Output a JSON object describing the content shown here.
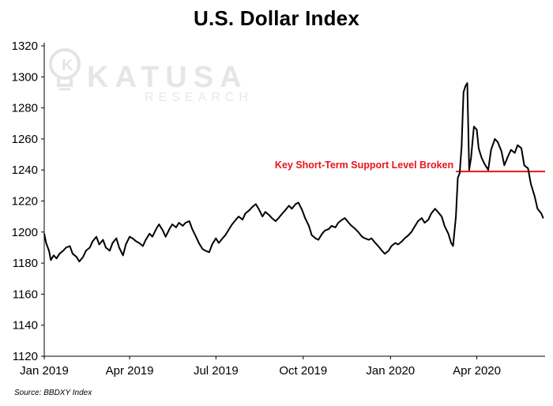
{
  "chart_data": {
    "type": "line",
    "title": "U.S. Dollar Index",
    "xlabel": "",
    "ylabel": "",
    "ylim": [
      1120,
      1320
    ],
    "yticks": [
      1120,
      1140,
      1160,
      1180,
      1200,
      1220,
      1240,
      1260,
      1280,
      1300,
      1320
    ],
    "xlim": [
      "2019-01-01",
      "2020-06-12"
    ],
    "xticks": [
      {
        "date": "2019-01-01",
        "label": "Jan 2019"
      },
      {
        "date": "2019-04-01",
        "label": "Apr 2019"
      },
      {
        "date": "2019-07-01",
        "label": "Jul 2019"
      },
      {
        "date": "2019-10-01",
        "label": "Oct 2019"
      },
      {
        "date": "2020-01-01",
        "label": "Jan 2020"
      },
      {
        "date": "2020-04-01",
        "label": "Apr 2020"
      }
    ],
    "grid": false,
    "line_color": "#000000",
    "series": [
      {
        "points": [
          [
            "2019-01-01",
            1199
          ],
          [
            "2019-01-03",
            1193
          ],
          [
            "2019-01-06",
            1188
          ],
          [
            "2019-01-08",
            1182
          ],
          [
            "2019-01-11",
            1185
          ],
          [
            "2019-01-14",
            1183
          ],
          [
            "2019-01-17",
            1186
          ],
          [
            "2019-01-21",
            1188
          ],
          [
            "2019-01-24",
            1190
          ],
          [
            "2019-01-28",
            1191
          ],
          [
            "2019-01-31",
            1186
          ],
          [
            "2019-02-04",
            1184
          ],
          [
            "2019-02-07",
            1181
          ],
          [
            "2019-02-11",
            1184
          ],
          [
            "2019-02-14",
            1188
          ],
          [
            "2019-02-18",
            1190
          ],
          [
            "2019-02-21",
            1194
          ],
          [
            "2019-02-25",
            1197
          ],
          [
            "2019-02-28",
            1192
          ],
          [
            "2019-03-04",
            1195
          ],
          [
            "2019-03-07",
            1190
          ],
          [
            "2019-03-11",
            1188
          ],
          [
            "2019-03-14",
            1193
          ],
          [
            "2019-03-18",
            1196
          ],
          [
            "2019-03-21",
            1190
          ],
          [
            "2019-03-25",
            1185
          ],
          [
            "2019-03-28",
            1192
          ],
          [
            "2019-04-01",
            1197
          ],
          [
            "2019-04-04",
            1196
          ],
          [
            "2019-04-08",
            1194
          ],
          [
            "2019-04-11",
            1193
          ],
          [
            "2019-04-15",
            1191
          ],
          [
            "2019-04-18",
            1195
          ],
          [
            "2019-04-22",
            1199
          ],
          [
            "2019-04-25",
            1197
          ],
          [
            "2019-04-29",
            1202
          ],
          [
            "2019-05-02",
            1205
          ],
          [
            "2019-05-06",
            1201
          ],
          [
            "2019-05-09",
            1197
          ],
          [
            "2019-05-13",
            1202
          ],
          [
            "2019-05-16",
            1205
          ],
          [
            "2019-05-20",
            1203
          ],
          [
            "2019-05-23",
            1206
          ],
          [
            "2019-05-27",
            1204
          ],
          [
            "2019-05-30",
            1206
          ],
          [
            "2019-06-03",
            1207
          ],
          [
            "2019-06-06",
            1202
          ],
          [
            "2019-06-10",
            1197
          ],
          [
            "2019-06-13",
            1193
          ],
          [
            "2019-06-17",
            1189
          ],
          [
            "2019-06-20",
            1188
          ],
          [
            "2019-06-24",
            1187
          ],
          [
            "2019-06-27",
            1192
          ],
          [
            "2019-07-01",
            1196
          ],
          [
            "2019-07-04",
            1193
          ],
          [
            "2019-07-08",
            1196
          ],
          [
            "2019-07-11",
            1198
          ],
          [
            "2019-07-15",
            1202
          ],
          [
            "2019-07-18",
            1205
          ],
          [
            "2019-07-22",
            1208
          ],
          [
            "2019-07-25",
            1210
          ],
          [
            "2019-07-29",
            1208
          ],
          [
            "2019-08-01",
            1212
          ],
          [
            "2019-08-05",
            1214
          ],
          [
            "2019-08-08",
            1216
          ],
          [
            "2019-08-12",
            1218
          ],
          [
            "2019-08-15",
            1215
          ],
          [
            "2019-08-19",
            1210
          ],
          [
            "2019-08-22",
            1213
          ],
          [
            "2019-08-26",
            1211
          ],
          [
            "2019-08-29",
            1209
          ],
          [
            "2019-09-02",
            1207
          ],
          [
            "2019-09-05",
            1209
          ],
          [
            "2019-09-09",
            1212
          ],
          [
            "2019-09-12",
            1214
          ],
          [
            "2019-09-16",
            1217
          ],
          [
            "2019-09-19",
            1215
          ],
          [
            "2019-09-23",
            1218
          ],
          [
            "2019-09-26",
            1219
          ],
          [
            "2019-09-30",
            1214
          ],
          [
            "2019-10-03",
            1209
          ],
          [
            "2019-10-07",
            1204
          ],
          [
            "2019-10-10",
            1198
          ],
          [
            "2019-10-14",
            1196
          ],
          [
            "2019-10-17",
            1195
          ],
          [
            "2019-10-21",
            1199
          ],
          [
            "2019-10-24",
            1201
          ],
          [
            "2019-10-28",
            1202
          ],
          [
            "2019-10-31",
            1204
          ],
          [
            "2019-11-04",
            1203
          ],
          [
            "2019-11-07",
            1206
          ],
          [
            "2019-11-11",
            1208
          ],
          [
            "2019-11-14",
            1209
          ],
          [
            "2019-11-18",
            1206
          ],
          [
            "2019-11-21",
            1204
          ],
          [
            "2019-11-25",
            1202
          ],
          [
            "2019-11-28",
            1200
          ],
          [
            "2019-12-02",
            1197
          ],
          [
            "2019-12-05",
            1196
          ],
          [
            "2019-12-09",
            1195
          ],
          [
            "2019-12-12",
            1196
          ],
          [
            "2019-12-16",
            1193
          ],
          [
            "2019-12-19",
            1191
          ],
          [
            "2019-12-23",
            1188
          ],
          [
            "2019-12-26",
            1186
          ],
          [
            "2019-12-30",
            1188
          ],
          [
            "2020-01-02",
            1191
          ],
          [
            "2020-01-06",
            1193
          ],
          [
            "2020-01-09",
            1192
          ],
          [
            "2020-01-13",
            1194
          ],
          [
            "2020-01-16",
            1196
          ],
          [
            "2020-01-20",
            1198
          ],
          [
            "2020-01-23",
            1200
          ],
          [
            "2020-01-27",
            1204
          ],
          [
            "2020-01-30",
            1207
          ],
          [
            "2020-02-03",
            1209
          ],
          [
            "2020-02-06",
            1206
          ],
          [
            "2020-02-10",
            1208
          ],
          [
            "2020-02-13",
            1212
          ],
          [
            "2020-02-17",
            1215
          ],
          [
            "2020-02-20",
            1213
          ],
          [
            "2020-02-24",
            1210
          ],
          [
            "2020-02-27",
            1204
          ],
          [
            "2020-03-02",
            1199
          ],
          [
            "2020-03-05",
            1193
          ],
          [
            "2020-03-07",
            1191
          ],
          [
            "2020-03-10",
            1210
          ],
          [
            "2020-03-12",
            1235
          ],
          [
            "2020-03-14",
            1238
          ],
          [
            "2020-03-16",
            1255
          ],
          [
            "2020-03-18",
            1290
          ],
          [
            "2020-03-20",
            1294
          ],
          [
            "2020-03-22",
            1296
          ],
          [
            "2020-03-24",
            1240
          ],
          [
            "2020-03-26",
            1248
          ],
          [
            "2020-03-29",
            1268
          ],
          [
            "2020-04-01",
            1266
          ],
          [
            "2020-04-03",
            1254
          ],
          [
            "2020-04-06",
            1248
          ],
          [
            "2020-04-09",
            1244
          ],
          [
            "2020-04-13",
            1240
          ],
          [
            "2020-04-16",
            1253
          ],
          [
            "2020-04-20",
            1260
          ],
          [
            "2020-04-23",
            1258
          ],
          [
            "2020-04-27",
            1252
          ],
          [
            "2020-04-30",
            1243
          ],
          [
            "2020-05-04",
            1249
          ],
          [
            "2020-05-07",
            1253
          ],
          [
            "2020-05-11",
            1251
          ],
          [
            "2020-05-14",
            1256
          ],
          [
            "2020-05-18",
            1254
          ],
          [
            "2020-05-21",
            1243
          ],
          [
            "2020-05-25",
            1241
          ],
          [
            "2020-05-28",
            1231
          ],
          [
            "2020-06-01",
            1223
          ],
          [
            "2020-06-04",
            1215
          ],
          [
            "2020-06-08",
            1212
          ],
          [
            "2020-06-10",
            1209
          ]
        ]
      }
    ],
    "annotations": [
      {
        "text": "Key Short-Term Support Level Broken",
        "color": "#e8151b",
        "level": 1239,
        "from": "2020-03-10",
        "to": "2020-06-12"
      }
    ],
    "source": "Source: BBDXY Index",
    "watermark": {
      "brand": "KATUSA",
      "sub": "RESEARCH"
    }
  }
}
